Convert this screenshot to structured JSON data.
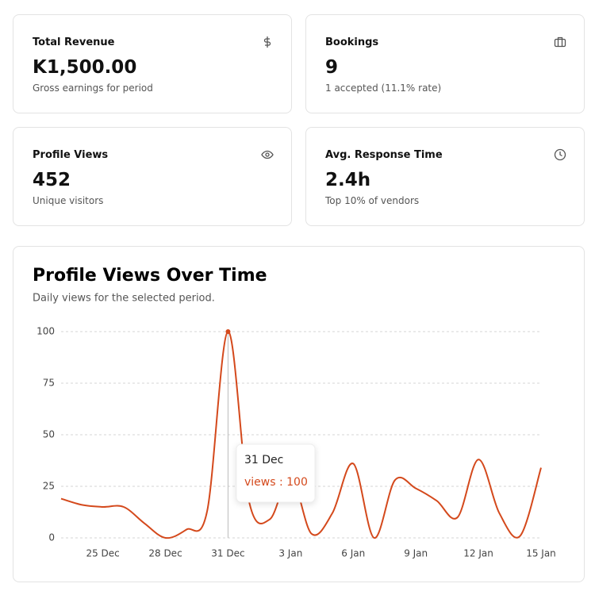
{
  "cards": [
    {
      "title": "Total Revenue",
      "value": "K1,500.00",
      "subtitle": "Gross earnings for period"
    },
    {
      "title": "Bookings",
      "value": "9",
      "subtitle": "1 accepted (11.1% rate)"
    },
    {
      "title": "Profile Views",
      "value": "452",
      "subtitle": "Unique visitors"
    },
    {
      "title": "Avg. Response Time",
      "value": "2.4h",
      "subtitle": "Top 10% of vendors"
    }
  ],
  "chart_data": {
    "type": "line",
    "title": "Profile Views Over Time",
    "subtitle": "Daily views for the selected period.",
    "categories": [
      null,
      null,
      "25 Dec",
      null,
      null,
      "28 Dec",
      null,
      null,
      "31 Dec",
      null,
      null,
      "3 Jan",
      null,
      null,
      "6 Jan",
      null,
      null,
      "9 Jan",
      null,
      null,
      "12 Jan",
      null,
      null,
      "15 Jan"
    ],
    "series": [
      {
        "name": "views",
        "color": "#d4491c",
        "values": [
          19,
          16,
          15,
          15,
          7,
          0,
          4,
          13,
          100,
          18,
          9,
          30,
          2,
          12,
          36,
          0,
          28,
          24,
          18,
          10,
          38,
          12,
          1,
          34
        ]
      }
    ],
    "ylim": [
      0,
      100
    ],
    "yticks": [
      0,
      25,
      50,
      75,
      100
    ],
    "grid": true,
    "tooltip": {
      "title": "31 Dec",
      "text": "views : 100"
    }
  }
}
